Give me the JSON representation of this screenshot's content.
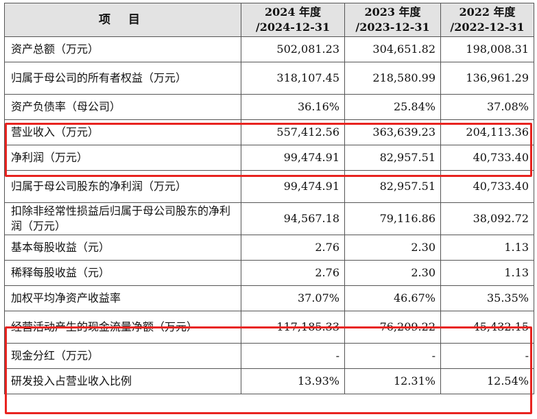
{
  "table": {
    "headers": {
      "item": "项 目",
      "y2024": [
        "2024 年度",
        "/2024-12-31"
      ],
      "y2023": [
        "2023 年度",
        "/2023-12-31"
      ],
      "y2022": [
        "2022 年度",
        "/2022-12-31"
      ]
    },
    "rows": [
      {
        "label": "资产总额（万元）",
        "v2024": "502,081.23",
        "v2023": "304,651.82",
        "v2022": "198,008.31"
      },
      {
        "label": "归属于母公司的所有者权益（万元）",
        "v2024": "318,107.45",
        "v2023": "218,580.99",
        "v2022": "136,961.29"
      },
      {
        "label": "资产负债率（母公司）",
        "v2024": "36.16%",
        "v2023": "25.84%",
        "v2022": "37.08%"
      },
      {
        "label": "营业收入（万元）",
        "v2024": "557,412.56",
        "v2023": "363,639.23",
        "v2022": "204,113.36"
      },
      {
        "label": "净利润（万元）",
        "v2024": "99,474.91",
        "v2023": "82,957.51",
        "v2022": "40,733.40"
      },
      {
        "label": "归属于母公司股东的净利润（万元）",
        "v2024": "99,474.91",
        "v2023": "82,957.51",
        "v2022": "40,733.40"
      },
      {
        "label": "扣除非经常性损益后归属于母公司股东的净利润（万元）",
        "v2024": "94,567.18",
        "v2023": "79,116.86",
        "v2022": "38,092.72"
      },
      {
        "label": "基本每股收益（元）",
        "v2024": "2.76",
        "v2023": "2.30",
        "v2022": "1.13"
      },
      {
        "label": "稀释每股收益（元）",
        "v2024": "2.76",
        "v2023": "2.30",
        "v2022": "1.13"
      },
      {
        "label": "加权平均净资产收益率",
        "v2024": "37.07%",
        "v2023": "46.67%",
        "v2022": "35.35%"
      },
      {
        "label": "经营活动产生的现金流量净额（万元）",
        "v2024": "117,185.33",
        "v2023": "76,209.22",
        "v2022": "45,432.15"
      },
      {
        "label": "现金分红（万元）",
        "v2024": "-",
        "v2023": "-",
        "v2022": "-"
      },
      {
        "label": "研发投入占营业收入比例",
        "v2024": "13.93%",
        "v2023": "12.31%",
        "v2022": "12.54%"
      }
    ]
  },
  "highlight_color": "#e8231f"
}
